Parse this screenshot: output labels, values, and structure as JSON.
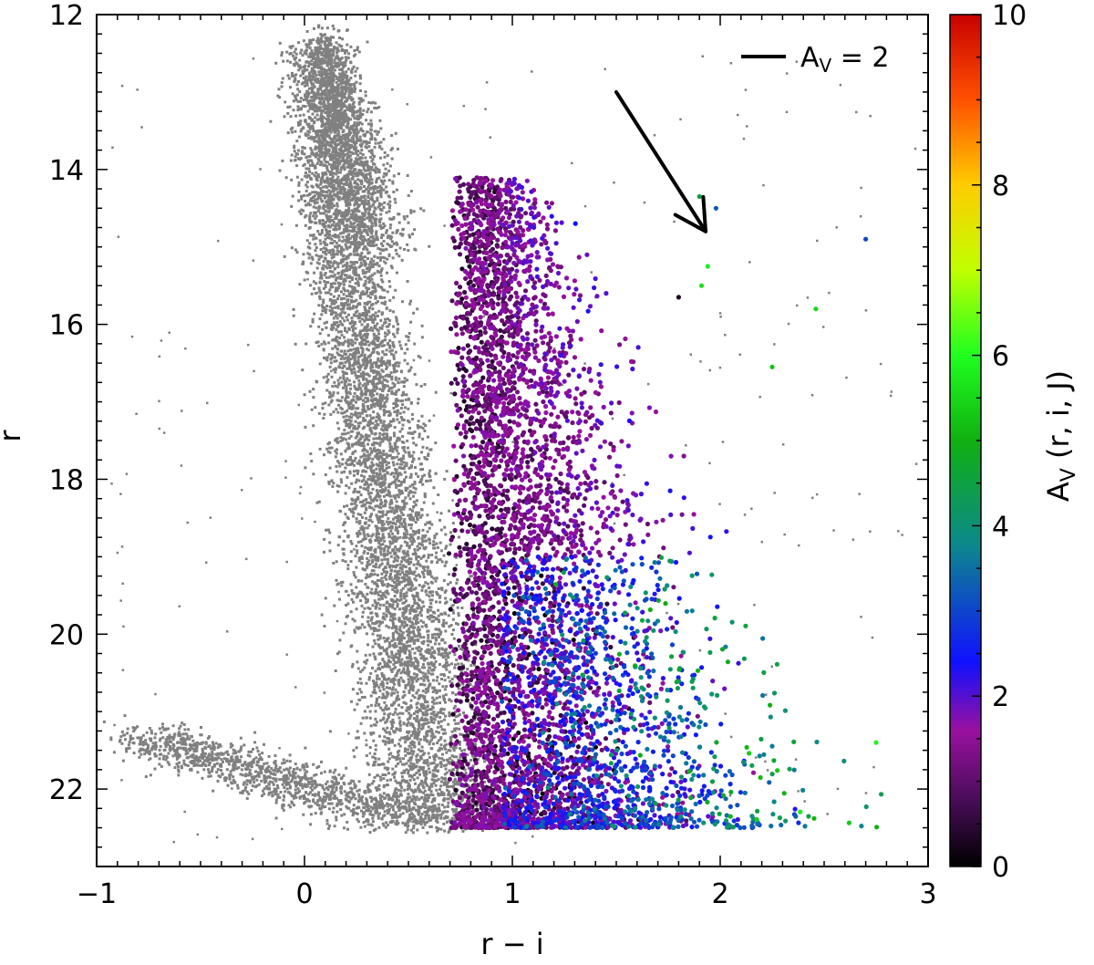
{
  "chart_data": {
    "type": "scatter",
    "title": "",
    "xlabel": "r − i",
    "ylabel": "r",
    "xlim": [
      -1,
      3
    ],
    "ylim": [
      23,
      12
    ],
    "y_inverted": true,
    "xticks": [
      -1,
      0,
      1,
      2,
      3
    ],
    "xtick_labels": [
      "−1",
      "0",
      "1",
      "2",
      "3"
    ],
    "yticks": [
      12,
      14,
      16,
      18,
      20,
      22
    ],
    "ytick_labels": [
      "12",
      "14",
      "16",
      "18",
      "20",
      "22"
    ],
    "grid": false,
    "colorbar": {
      "label": "A",
      "label_sub": "V",
      "label_rest": " (r, i, J)",
      "range": [
        0,
        10
      ],
      "ticks": [
        0,
        2,
        4,
        6,
        8,
        10
      ],
      "tick_labels": [
        "0",
        "2",
        "4",
        "6",
        "8",
        "10"
      ],
      "colormap_stops": [
        {
          "value": 0,
          "color": "#000000"
        },
        {
          "value": 0.8,
          "color": "#4a0d5a"
        },
        {
          "value": 1.6,
          "color": "#9a10a0"
        },
        {
          "value": 2.4,
          "color": "#1010ff"
        },
        {
          "value": 3.8,
          "color": "#0c8a8a"
        },
        {
          "value": 5.0,
          "color": "#10b010"
        },
        {
          "value": 6.0,
          "color": "#20ff20"
        },
        {
          "value": 7.0,
          "color": "#c0ff00"
        },
        {
          "value": 8.0,
          "color": "#ffcc00"
        },
        {
          "value": 9.0,
          "color": "#ff5000"
        },
        {
          "value": 10,
          "color": "#c80000"
        }
      ]
    },
    "legend": {
      "placement": "top-right",
      "label": "A",
      "label_sub": "V",
      "label_rest": " = 2"
    },
    "reddening_vector": {
      "label": "A_V = 2",
      "from": {
        "x": 1.5,
        "y": 13.0
      },
      "to": {
        "x": 1.93,
        "y": 14.8
      }
    },
    "series": [
      {
        "kind": "background-density",
        "color": "#808080",
        "point_count": 9000,
        "components": [
          {
            "description": "main sequence ridge",
            "x_start": 0.05,
            "y_start": 12.4,
            "x_end": 0.62,
            "y_end": 22.4,
            "width": 0.13
          },
          {
            "description": "upper giant branch",
            "x_start": 0.1,
            "y_start": 12.3,
            "x_end": 0.35,
            "y_end": 15.0,
            "width": 0.09
          },
          {
            "description": "faint blue tail",
            "x_start": -0.8,
            "y_start": 21.3,
            "x_end": 0.55,
            "y_end": 22.4,
            "width": 0.15
          }
        ]
      },
      {
        "kind": "extinction-colored",
        "color_by": "A_V",
        "point_count": 5500,
        "x_range": [
          0.68,
          2.75
        ],
        "y_range": [
          14.0,
          22.9
        ]
      }
    ]
  }
}
